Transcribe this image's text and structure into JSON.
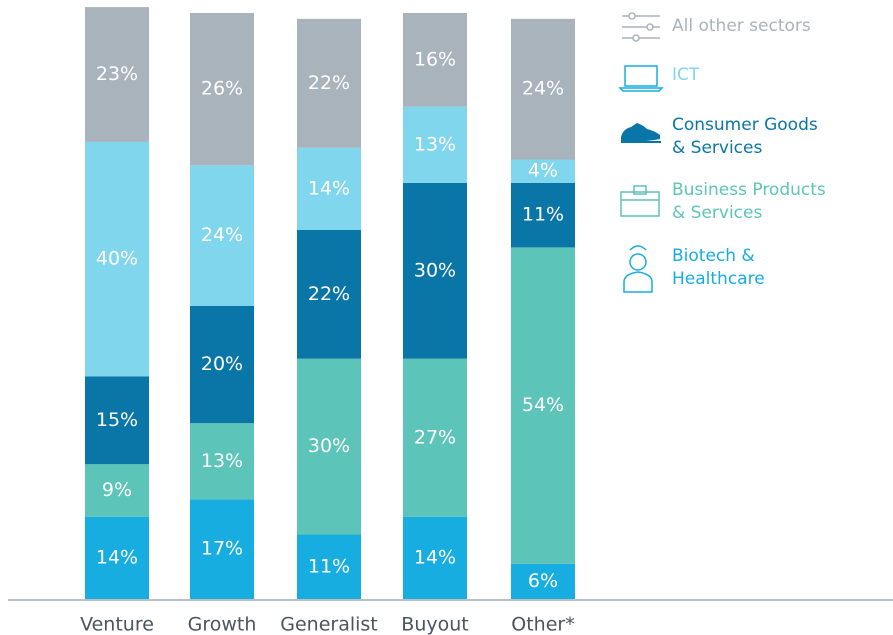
{
  "chart_data": {
    "type": "stacked_bar",
    "categories": [
      "Venture",
      "Growth",
      "Generalist",
      "Buyout",
      "Other*"
    ],
    "ylim": [
      0,
      100
    ],
    "series": [
      {
        "name": "Biotech &\nHealthcare",
        "color": "#17ade0",
        "values": [
          14,
          17,
          11,
          14,
          6
        ],
        "value_labels": [
          "14%",
          "17%",
          "11%",
          "14%",
          "6%"
        ]
      },
      {
        "name": "Business Products\n& Services",
        "color": "#5cc4b9",
        "values": [
          9,
          13,
          30,
          27,
          54
        ],
        "value_labels": [
          "9%",
          "13%",
          "30%",
          "27%",
          "54%"
        ]
      },
      {
        "name": "Consumer Goods\n& Services",
        "color": "#0a76a8",
        "values": [
          15,
          20,
          22,
          30,
          11
        ],
        "value_labels": [
          "15%",
          "20%",
          "22%",
          "30%",
          "11%"
        ]
      },
      {
        "name": "ICT",
        "color": "#80d6ec",
        "values": [
          40,
          24,
          14,
          13,
          4
        ],
        "value_labels": [
          "40%",
          "24%",
          "14%",
          "13%",
          "4%"
        ]
      },
      {
        "name": "All other sectors",
        "color": "#a9b3bc",
        "values": [
          23,
          26,
          22,
          16,
          24
        ],
        "value_labels": [
          "23%",
          "26%",
          "22%",
          "16%",
          "24%"
        ]
      }
    ]
  }
}
